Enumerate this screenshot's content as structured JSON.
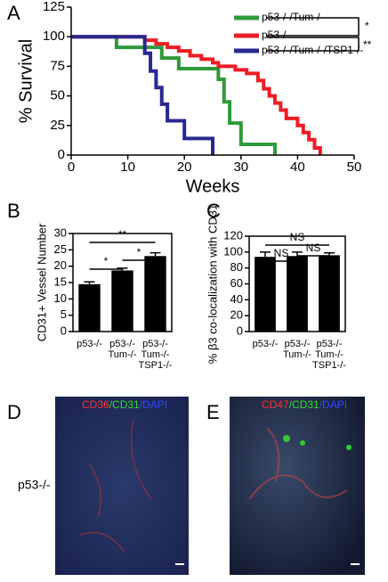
{
  "chart_data": [
    {
      "type": "step",
      "ylabel": "% Survival",
      "xlabel": "Weeks",
      "xlim": [
        0,
        50
      ],
      "ylim": [
        0,
        125
      ],
      "xticks": [
        0,
        10,
        20,
        30,
        40,
        50
      ],
      "yticks": [
        0,
        25,
        50,
        75,
        100,
        125
      ],
      "series": [
        {
          "name": "p53-/-/Tum-/-",
          "color": "#2e9a3a",
          "x": [
            0,
            8,
            16,
            19,
            26,
            27,
            28,
            30,
            36
          ],
          "values": [
            100,
            91,
            82,
            73,
            64,
            45,
            27,
            9,
            0
          ]
        },
        {
          "name": "p53-/-",
          "color": "#ee1c24",
          "x": [
            0,
            13,
            15,
            17,
            19,
            21,
            23,
            25,
            26,
            29,
            31,
            33,
            34,
            35,
            36,
            37,
            38,
            40,
            41,
            42,
            43,
            44
          ],
          "values": [
            100,
            97,
            94,
            91,
            88,
            84,
            81,
            78,
            75,
            72,
            69,
            63,
            56,
            50,
            44,
            38,
            31,
            25,
            19,
            13,
            6,
            0
          ]
        },
        {
          "name": "p53-/-/Tum-/-/TSP1-/-",
          "color": "#28288f",
          "x": [
            0,
            13,
            14,
            15,
            16,
            17,
            20,
            25
          ],
          "values": [
            100,
            86,
            71,
            57,
            43,
            29,
            14,
            0
          ]
        }
      ],
      "annotations": [
        "*",
        "**"
      ]
    },
    {
      "type": "bar",
      "ylabel": "CD31+ Vessel Number",
      "ylim": [
        0,
        30
      ],
      "yticks": [
        0,
        5,
        10,
        15,
        20,
        25,
        30
      ],
      "categories": [
        [
          "p53-/-"
        ],
        [
          "p53-/-",
          "Tum-/-"
        ],
        [
          "p53-/-",
          "Tum-/-",
          "TSP1-/-"
        ]
      ],
      "values": [
        14.5,
        18.7,
        23.1
      ],
      "errors": [
        0.7,
        0.7,
        1.0
      ],
      "color": "#000000",
      "annotations": [
        "*",
        "*",
        "**"
      ]
    },
    {
      "type": "bar",
      "ylabel": "% β3 co-localization with CD31",
      "ylim": [
        0,
        120
      ],
      "yticks": [
        0,
        20,
        40,
        60,
        80,
        100,
        120
      ],
      "categories": [
        [
          "p53-/-"
        ],
        [
          "p53-/-",
          "Tum-/-"
        ],
        [
          "p53-/-",
          "Tum-/-",
          "TSP1-/-"
        ]
      ],
      "values": [
        94,
        95,
        96
      ],
      "errors": [
        6,
        5,
        3
      ],
      "color": "#000000",
      "annotations": [
        "NS",
        "NS",
        "NS"
      ]
    }
  ],
  "panel_labels": [
    "A",
    "B",
    "C",
    "D",
    "E"
  ],
  "images": [
    {
      "row_label": "p53-/-",
      "stain": [
        "CD36",
        "/CD31",
        "/DAPI"
      ]
    },
    {
      "stain": [
        "CD47",
        "/CD31",
        "/DAPI"
      ]
    }
  ]
}
